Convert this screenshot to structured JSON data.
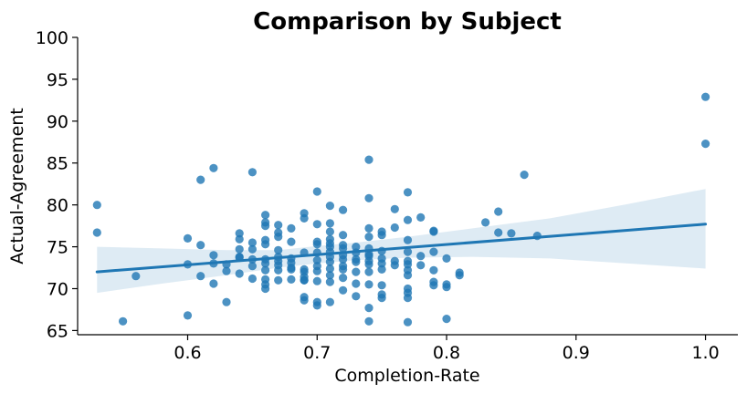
{
  "chart_data": {
    "type": "scatter",
    "title": "Comparison by Subject",
    "xlabel": "Completion-Rate",
    "ylabel": "Actual-Agreement",
    "xlim": [
      0.515,
      1.025
    ],
    "ylim": [
      64.5,
      100
    ],
    "xticks": [
      "0.6",
      "0.7",
      "0.8",
      "0.9",
      "1.0"
    ],
    "yticks": [
      "65",
      "70",
      "75",
      "80",
      "85",
      "90",
      "95",
      "100"
    ],
    "grid": false,
    "legend": "none",
    "colors": {
      "points": "#1f77b4",
      "line": "#1f77b4",
      "band": "#1f77b4"
    },
    "series": [
      {
        "kind": "points",
        "x": [
          0.53,
          0.53,
          0.55,
          0.56,
          0.6,
          0.6,
          0.6,
          0.61,
          0.61,
          0.61,
          0.62,
          0.62,
          0.62,
          0.62,
          0.63,
          0.63,
          0.63,
          0.64,
          0.64,
          0.64,
          0.64,
          0.64,
          0.64,
          0.65,
          0.65,
          0.65,
          0.65,
          0.65,
          0.65,
          0.66,
          0.66,
          0.66,
          0.66,
          0.66,
          0.66,
          0.66,
          0.66,
          0.66,
          0.66,
          0.66,
          0.67,
          0.67,
          0.67,
          0.67,
          0.67,
          0.67,
          0.67,
          0.67,
          0.67,
          0.68,
          0.68,
          0.68,
          0.68,
          0.68,
          0.68,
          0.68,
          0.69,
          0.69,
          0.69,
          0.69,
          0.69,
          0.69,
          0.69,
          0.69,
          0.69,
          0.69,
          0.7,
          0.7,
          0.7,
          0.7,
          0.7,
          0.7,
          0.7,
          0.7,
          0.7,
          0.7,
          0.7,
          0.71,
          0.71,
          0.71,
          0.71,
          0.71,
          0.71,
          0.71,
          0.71,
          0.71,
          0.71,
          0.71,
          0.71,
          0.71,
          0.72,
          0.72,
          0.72,
          0.72,
          0.72,
          0.72,
          0.72,
          0.72,
          0.72,
          0.72,
          0.73,
          0.73,
          0.73,
          0.73,
          0.73,
          0.73,
          0.73,
          0.74,
          0.74,
          0.74,
          0.74,
          0.74,
          0.74,
          0.74,
          0.74,
          0.74,
          0.74,
          0.74,
          0.74,
          0.74,
          0.75,
          0.75,
          0.75,
          0.75,
          0.75,
          0.75,
          0.75,
          0.75,
          0.75,
          0.76,
          0.76,
          0.76,
          0.76,
          0.77,
          0.77,
          0.77,
          0.77,
          0.77,
          0.77,
          0.77,
          0.77,
          0.77,
          0.77,
          0.77,
          0.77,
          0.78,
          0.78,
          0.78,
          0.79,
          0.79,
          0.79,
          0.79,
          0.79,
          0.79,
          0.8,
          0.8,
          0.8,
          0.8,
          0.81,
          0.81,
          0.83,
          0.84,
          0.84,
          0.85,
          0.86,
          0.87,
          1.0,
          1.0
        ],
        "y": [
          80.0,
          76.7,
          66.1,
          71.5,
          76.0,
          72.9,
          66.8,
          83.0,
          75.2,
          71.5,
          84.4,
          74.0,
          73.0,
          70.6,
          72.9,
          72.1,
          68.4,
          76.6,
          75.9,
          74.7,
          73.8,
          73.7,
          71.8,
          83.9,
          75.5,
          74.7,
          73.5,
          72.7,
          71.2,
          78.8,
          77.9,
          77.5,
          75.8,
          75.3,
          73.5,
          73.0,
          71.1,
          70.5,
          70.0,
          72.2,
          77.6,
          76.7,
          76.2,
          74.6,
          73.3,
          72.8,
          72.2,
          71.0,
          73.8,
          77.2,
          75.6,
          73.6,
          73.1,
          72.5,
          72.3,
          71.1,
          79.0,
          78.4,
          74.3,
          72.3,
          71.4,
          71.0,
          69.0,
          68.6,
          72.0,
          71.0,
          81.6,
          77.7,
          75.6,
          75.3,
          74.3,
          73.4,
          72.7,
          72.1,
          70.9,
          68.4,
          68.0,
          79.9,
          77.8,
          76.8,
          75.9,
          75.4,
          75.0,
          74.4,
          73.8,
          73.2,
          72.4,
          71.6,
          70.8,
          68.4,
          79.4,
          76.4,
          75.2,
          74.8,
          74.0,
          73.5,
          72.7,
          72.3,
          71.3,
          69.8,
          75.0,
          74.3,
          73.5,
          73.2,
          72.0,
          70.6,
          69.1,
          85.4,
          80.8,
          77.2,
          76.2,
          74.8,
          74.1,
          73.3,
          72.9,
          72.0,
          70.5,
          67.7,
          66.1,
          73.9,
          76.8,
          76.4,
          74.5,
          73.6,
          73.0,
          72.3,
          70.4,
          69.3,
          68.9,
          79.5,
          77.3,
          73.3,
          72.8,
          81.5,
          78.2,
          75.8,
          74.4,
          73.3,
          72.9,
          72.2,
          71.6,
          70.0,
          69.5,
          68.9,
          66.0,
          78.5,
          73.9,
          72.8,
          76.9,
          76.8,
          74.4,
          72.2,
          70.8,
          70.4,
          73.6,
          70.5,
          70.2,
          66.4,
          71.9,
          71.6,
          77.9,
          79.2,
          76.7,
          76.6,
          83.6,
          76.3,
          92.9,
          87.3
        ]
      },
      {
        "kind": "regression",
        "x": [
          0.53,
          1.0
        ],
        "y": [
          72.0,
          77.7
        ]
      },
      {
        "kind": "confidence-band",
        "x": [
          0.53,
          0.58,
          0.63,
          0.67,
          0.7,
          0.73,
          0.77,
          0.82,
          0.88,
          0.94,
          1.0
        ],
        "upper": [
          75.0,
          74.8,
          74.6,
          74.6,
          75.1,
          75.5,
          76.2,
          77.2,
          78.4,
          80.1,
          81.9
        ],
        "lower": [
          69.5,
          70.6,
          71.6,
          72.5,
          73.0,
          73.4,
          73.7,
          73.8,
          73.6,
          73.0,
          72.4
        ]
      }
    ]
  }
}
